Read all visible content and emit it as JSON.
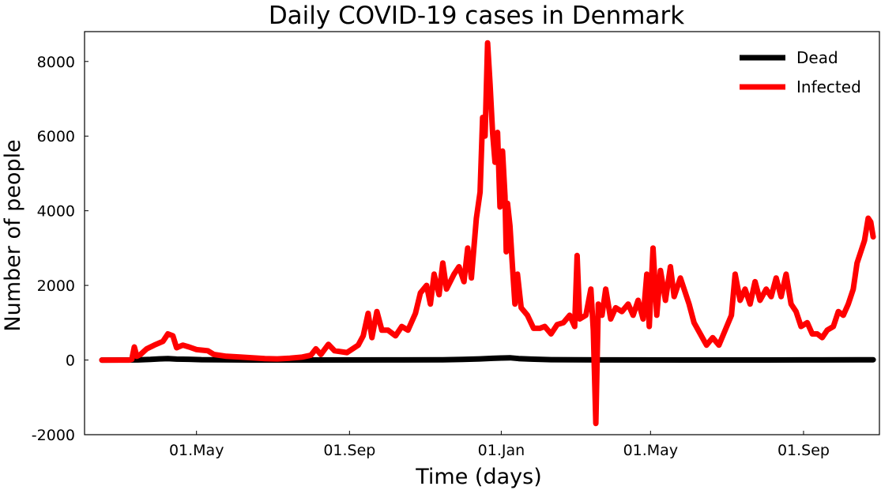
{
  "chart_data": {
    "type": "line",
    "title": "Daily COVID-19 cases in Denmark",
    "xlabel": "Time (days)",
    "ylabel": "Number of people",
    "xlim": [
      "2020-02-01",
      "2021-11-01"
    ],
    "ylim": [
      -2000,
      8800
    ],
    "x_ticks": [
      {
        "date": "2020-05-01",
        "label": "01.May"
      },
      {
        "date": "2020-09-01",
        "label": "01.Sep"
      },
      {
        "date": "2021-01-01",
        "label": "01.Jan"
      },
      {
        "date": "2021-05-01",
        "label": "01.May"
      },
      {
        "date": "2021-09-01",
        "label": "01.Sep"
      }
    ],
    "y_ticks": [
      {
        "value": -2000,
        "label": "-2000"
      },
      {
        "value": 0,
        "label": "0"
      },
      {
        "value": 2000,
        "label": "2000"
      },
      {
        "value": 4000,
        "label": "4000"
      },
      {
        "value": 6000,
        "label": "6000"
      },
      {
        "value": 8000,
        "label": "8000"
      }
    ],
    "grid": false,
    "legend_position": "top-right",
    "series": [
      {
        "name": "Dead",
        "color": "#000000",
        "points": [
          [
            "2020-02-15",
            0
          ],
          [
            "2020-03-15",
            3
          ],
          [
            "2020-03-25",
            15
          ],
          [
            "2020-04-01",
            30
          ],
          [
            "2020-04-08",
            40
          ],
          [
            "2020-04-15",
            25
          ],
          [
            "2020-04-25",
            20
          ],
          [
            "2020-05-05",
            10
          ],
          [
            "2020-05-20",
            5
          ],
          [
            "2020-06-15",
            2
          ],
          [
            "2020-08-01",
            1
          ],
          [
            "2020-10-01",
            4
          ],
          [
            "2020-11-15",
            8
          ],
          [
            "2020-12-01",
            15
          ],
          [
            "2020-12-15",
            30
          ],
          [
            "2020-12-25",
            45
          ],
          [
            "2021-01-01",
            55
          ],
          [
            "2021-01-08",
            60
          ],
          [
            "2021-01-15",
            40
          ],
          [
            "2021-01-25",
            25
          ],
          [
            "2021-02-10",
            10
          ],
          [
            "2021-03-01",
            5
          ],
          [
            "2021-04-01",
            3
          ],
          [
            "2021-06-01",
            2
          ],
          [
            "2021-08-01",
            2
          ],
          [
            "2021-09-15",
            3
          ],
          [
            "2021-10-15",
            5
          ],
          [
            "2021-10-27",
            8
          ]
        ]
      },
      {
        "name": "Infected",
        "color": "#ff0000",
        "points": [
          [
            "2020-02-15",
            0
          ],
          [
            "2020-03-08",
            0
          ],
          [
            "2020-03-10",
            20
          ],
          [
            "2020-03-12",
            350
          ],
          [
            "2020-03-14",
            100
          ],
          [
            "2020-03-17",
            150
          ],
          [
            "2020-03-22",
            300
          ],
          [
            "2020-03-28",
            400
          ],
          [
            "2020-04-04",
            500
          ],
          [
            "2020-04-08",
            700
          ],
          [
            "2020-04-12",
            650
          ],
          [
            "2020-04-15",
            330
          ],
          [
            "2020-04-20",
            400
          ],
          [
            "2020-04-25",
            350
          ],
          [
            "2020-05-01",
            280
          ],
          [
            "2020-05-10",
            250
          ],
          [
            "2020-05-15",
            150
          ],
          [
            "2020-05-25",
            100
          ],
          [
            "2020-06-05",
            80
          ],
          [
            "2020-06-15",
            60
          ],
          [
            "2020-06-25",
            40
          ],
          [
            "2020-07-05",
            30
          ],
          [
            "2020-07-15",
            50
          ],
          [
            "2020-07-25",
            80
          ],
          [
            "2020-08-01",
            130
          ],
          [
            "2020-08-05",
            300
          ],
          [
            "2020-08-09",
            150
          ],
          [
            "2020-08-15",
            420
          ],
          [
            "2020-08-20",
            250
          ],
          [
            "2020-08-30",
            200
          ],
          [
            "2020-09-08",
            400
          ],
          [
            "2020-09-12",
            650
          ],
          [
            "2020-09-16",
            1250
          ],
          [
            "2020-09-19",
            600
          ],
          [
            "2020-09-23",
            1300
          ],
          [
            "2020-09-27",
            800
          ],
          [
            "2020-10-02",
            800
          ],
          [
            "2020-10-08",
            650
          ],
          [
            "2020-10-13",
            900
          ],
          [
            "2020-10-18",
            800
          ],
          [
            "2020-10-24",
            1250
          ],
          [
            "2020-10-28",
            1800
          ],
          [
            "2020-11-02",
            2000
          ],
          [
            "2020-11-05",
            1500
          ],
          [
            "2020-11-08",
            2300
          ],
          [
            "2020-11-12",
            1750
          ],
          [
            "2020-11-15",
            2600
          ],
          [
            "2020-11-18",
            1900
          ],
          [
            "2020-11-24",
            2300
          ],
          [
            "2020-11-28",
            2500
          ],
          [
            "2020-12-02",
            2100
          ],
          [
            "2020-12-05",
            3000
          ],
          [
            "2020-12-08",
            2200
          ],
          [
            "2020-12-12",
            3800
          ],
          [
            "2020-12-15",
            4500
          ],
          [
            "2020-12-17",
            6500
          ],
          [
            "2020-12-19",
            6000
          ],
          [
            "2020-12-21",
            8500
          ],
          [
            "2020-12-23",
            7400
          ],
          [
            "2020-12-25",
            6100
          ],
          [
            "2020-12-27",
            5300
          ],
          [
            "2020-12-29",
            6100
          ],
          [
            "2020-12-31",
            4100
          ],
          [
            "2021-01-02",
            5600
          ],
          [
            "2021-01-04",
            4400
          ],
          [
            "2021-01-05",
            2900
          ],
          [
            "2021-01-06",
            4200
          ],
          [
            "2021-01-08",
            3600
          ],
          [
            "2021-01-10",
            2500
          ],
          [
            "2021-01-12",
            1500
          ],
          [
            "2021-01-14",
            2300
          ],
          [
            "2021-01-17",
            1400
          ],
          [
            "2021-01-22",
            1200
          ],
          [
            "2021-01-27",
            850
          ],
          [
            "2021-02-01",
            850
          ],
          [
            "2021-02-05",
            900
          ],
          [
            "2021-02-10",
            700
          ],
          [
            "2021-02-15",
            950
          ],
          [
            "2021-02-20",
            1000
          ],
          [
            "2021-02-25",
            1200
          ],
          [
            "2021-03-01",
            900
          ],
          [
            "2021-03-03",
            2800
          ],
          [
            "2021-03-05",
            1100
          ],
          [
            "2021-03-10",
            1200
          ],
          [
            "2021-03-14",
            1900
          ],
          [
            "2021-03-16",
            800
          ],
          [
            "2021-03-18",
            -1700
          ],
          [
            "2021-03-20",
            1500
          ],
          [
            "2021-03-23",
            1200
          ],
          [
            "2021-03-26",
            1900
          ],
          [
            "2021-03-30",
            1100
          ],
          [
            "2021-04-03",
            1400
          ],
          [
            "2021-04-08",
            1300
          ],
          [
            "2021-04-13",
            1500
          ],
          [
            "2021-04-17",
            1200
          ],
          [
            "2021-04-21",
            1600
          ],
          [
            "2021-04-25",
            1100
          ],
          [
            "2021-04-28",
            2300
          ],
          [
            "2021-04-30",
            900
          ],
          [
            "2021-05-03",
            3000
          ],
          [
            "2021-05-06",
            1200
          ],
          [
            "2021-05-09",
            2400
          ],
          [
            "2021-05-13",
            1600
          ],
          [
            "2021-05-17",
            2500
          ],
          [
            "2021-05-20",
            1700
          ],
          [
            "2021-05-25",
            2200
          ],
          [
            "2021-06-01",
            1500
          ],
          [
            "2021-06-05",
            1000
          ],
          [
            "2021-06-10",
            700
          ],
          [
            "2021-06-15",
            400
          ],
          [
            "2021-06-20",
            600
          ],
          [
            "2021-06-25",
            400
          ],
          [
            "2021-06-30",
            800
          ],
          [
            "2021-07-05",
            1200
          ],
          [
            "2021-07-08",
            2300
          ],
          [
            "2021-07-12",
            1600
          ],
          [
            "2021-07-16",
            1900
          ],
          [
            "2021-07-20",
            1500
          ],
          [
            "2021-07-24",
            2100
          ],
          [
            "2021-07-28",
            1600
          ],
          [
            "2021-08-02",
            1900
          ],
          [
            "2021-08-06",
            1700
          ],
          [
            "2021-08-10",
            2200
          ],
          [
            "2021-08-14",
            1700
          ],
          [
            "2021-08-18",
            2300
          ],
          [
            "2021-08-22",
            1500
          ],
          [
            "2021-08-26",
            1300
          ],
          [
            "2021-08-30",
            900
          ],
          [
            "2021-09-04",
            1000
          ],
          [
            "2021-09-08",
            700
          ],
          [
            "2021-09-12",
            700
          ],
          [
            "2021-09-16",
            600
          ],
          [
            "2021-09-20",
            800
          ],
          [
            "2021-09-25",
            900
          ],
          [
            "2021-09-29",
            1300
          ],
          [
            "2021-10-03",
            1200
          ],
          [
            "2021-10-07",
            1500
          ],
          [
            "2021-10-11",
            1900
          ],
          [
            "2021-10-14",
            2600
          ],
          [
            "2021-10-17",
            2900
          ],
          [
            "2021-10-20",
            3200
          ],
          [
            "2021-10-23",
            3800
          ],
          [
            "2021-10-25",
            3700
          ],
          [
            "2021-10-27",
            3300
          ]
        ]
      }
    ]
  }
}
